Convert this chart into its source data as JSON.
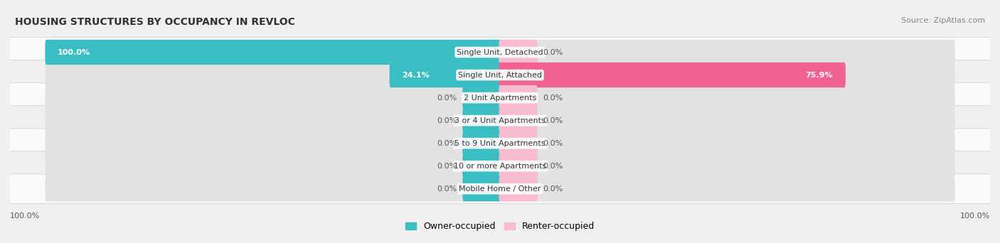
{
  "title": "HOUSING STRUCTURES BY OCCUPANCY IN REVLOC",
  "source": "Source: ZipAtlas.com",
  "categories": [
    "Single Unit, Detached",
    "Single Unit, Attached",
    "2 Unit Apartments",
    "3 or 4 Unit Apartments",
    "5 to 9 Unit Apartments",
    "10 or more Apartments",
    "Mobile Home / Other"
  ],
  "owner_pct": [
    100.0,
    24.1,
    0.0,
    0.0,
    0.0,
    0.0,
    0.0
  ],
  "renter_pct": [
    0.0,
    75.9,
    0.0,
    0.0,
    0.0,
    0.0,
    0.0
  ],
  "owner_color": "#3bbdc4",
  "renter_color": "#f06292",
  "renter_color_light": "#f8bbd0",
  "owner_label": "Owner-occupied",
  "renter_label": "Renter-occupied",
  "bg_color": "#f0f0f0",
  "bar_bg_color": "#e2e2e2",
  "row_bg_even": "#fafafa",
  "row_bg_odd": "#f0f0f0",
  "title_fontsize": 10,
  "source_fontsize": 8,
  "label_fontsize": 8,
  "value_fontsize": 8,
  "legend_fontsize": 9,
  "axis_label_left": "100.0%",
  "axis_label_right": "100.0%",
  "max_val": 100.0,
  "min_bar_show": 5.0,
  "zero_bar_width": 8.0
}
